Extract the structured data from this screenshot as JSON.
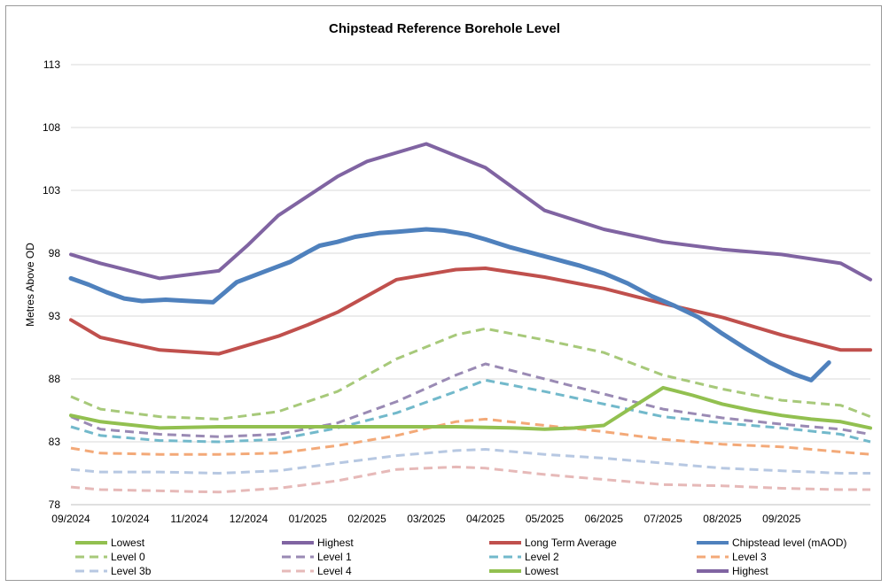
{
  "chart_data": {
    "type": "line",
    "title": "Chipstead Reference Borehole Level",
    "xlabel": "",
    "ylabel": "Metres Above OD",
    "ylim": [
      78,
      113
    ],
    "yticks": [
      "113",
      "108",
      "103",
      "98",
      "93",
      "88",
      "83",
      "78"
    ],
    "ytick_values": [
      113,
      108,
      103,
      98,
      93,
      88,
      83,
      78
    ],
    "categories": [
      "09/2024",
      "10/2024",
      "11/2024",
      "12/2024",
      "01/2025",
      "02/2025",
      "03/2025",
      "04/2025",
      "05/2025",
      "06/2025",
      "07/2025",
      "08/2025",
      "09/2025"
    ],
    "x_max": 13.5,
    "grid": "horizontal",
    "legend_placement": "bottom",
    "series": [
      {
        "name": "Lowest",
        "color": "#92c050",
        "dash": "solid",
        "width": 4,
        "x": [
          0,
          0.5,
          1.5,
          2.5,
          3.5,
          4.5,
          5.5,
          6.5,
          7.5,
          8.0,
          8.5,
          9.0,
          9.5,
          10.0,
          10.5,
          11.0,
          11.5,
          12.0,
          12.5,
          13.0,
          13.5
        ],
        "values": [
          85.1,
          84.6,
          84.1,
          84.2,
          84.2,
          84.2,
          84.2,
          84.2,
          84.1,
          84.0,
          84.1,
          84.3,
          85.8,
          87.3,
          86.7,
          86.0,
          85.5,
          85.1,
          84.8,
          84.6,
          84.1
        ]
      },
      {
        "name": "Highest",
        "color": "#8064a2",
        "dash": "solid",
        "width": 4,
        "x": [
          0,
          0.5,
          1.5,
          2.5,
          3.0,
          3.5,
          4.5,
          5.0,
          6.0,
          7.0,
          8.0,
          9.0,
          10.0,
          11.0,
          12.0,
          13.0,
          13.5
        ],
        "values": [
          97.9,
          97.2,
          96.0,
          96.6,
          98.7,
          101.0,
          104.1,
          105.3,
          106.7,
          104.8,
          101.4,
          99.9,
          98.9,
          98.3,
          97.9,
          97.2,
          95.9
        ]
      },
      {
        "name": "Long Term Average",
        "color": "#c0504d",
        "dash": "solid",
        "width": 4,
        "x": [
          0,
          0.5,
          1.5,
          2.5,
          3.5,
          4.0,
          4.5,
          5.5,
          6.5,
          7.0,
          8.0,
          9.0,
          10.0,
          11.0,
          12.0,
          13.0,
          13.5
        ],
        "values": [
          92.7,
          91.3,
          90.3,
          90.0,
          91.4,
          92.3,
          93.3,
          95.9,
          96.7,
          96.8,
          96.1,
          95.2,
          94.0,
          92.9,
          91.5,
          90.3,
          90.3
        ]
      },
      {
        "name": "Chipstead level (mAOD)",
        "color": "#4f81bd",
        "dash": "solid",
        "width": 5,
        "x": [
          0,
          0.3,
          0.6,
          0.9,
          1.2,
          1.6,
          2.0,
          2.4,
          2.8,
          3.3,
          3.7,
          4.0,
          4.2,
          4.5,
          4.8,
          5.2,
          5.5,
          6.0,
          6.3,
          6.7,
          7.0,
          7.4,
          7.8,
          8.2,
          8.6,
          9.0,
          9.4,
          9.8,
          10.2,
          10.6,
          11.0,
          11.4,
          11.8,
          12.2,
          12.5,
          12.8
        ],
        "values": [
          96.0,
          95.5,
          94.9,
          94.4,
          94.2,
          94.3,
          94.2,
          94.1,
          95.7,
          96.6,
          97.3,
          98.1,
          98.6,
          98.9,
          99.3,
          99.6,
          99.7,
          99.9,
          99.8,
          99.5,
          99.1,
          98.5,
          98.0,
          97.5,
          97.0,
          96.4,
          95.6,
          94.6,
          93.8,
          92.9,
          91.6,
          90.4,
          89.3,
          88.4,
          87.9,
          89.3
        ]
      },
      {
        "name": "Level 0",
        "color": "#a7c97a",
        "dash": "dashed",
        "width": 3,
        "x": [
          0,
          0.5,
          1.5,
          2.5,
          3.5,
          4.5,
          5.5,
          6.5,
          7.0,
          8.0,
          9.0,
          10.0,
          11.0,
          12.0,
          13.0,
          13.5
        ],
        "values": [
          86.6,
          85.6,
          85.0,
          84.8,
          85.4,
          87.0,
          89.6,
          91.5,
          92.0,
          91.1,
          90.1,
          88.3,
          87.2,
          86.3,
          85.9,
          85.0
        ]
      },
      {
        "name": "Level 1",
        "color": "#9a8ab4",
        "dash": "dashed",
        "width": 3,
        "x": [
          0,
          0.5,
          1.5,
          2.5,
          3.5,
          4.5,
          5.5,
          6.5,
          7.0,
          8.0,
          9.0,
          10.0,
          11.0,
          12.0,
          13.0,
          13.5
        ],
        "values": [
          85.0,
          84.0,
          83.6,
          83.4,
          83.6,
          84.5,
          86.2,
          88.3,
          89.2,
          88.0,
          86.8,
          85.6,
          84.9,
          84.4,
          84.0,
          83.6
        ]
      },
      {
        "name": "Level 2",
        "color": "#72b9cb",
        "dash": "dashed",
        "width": 3,
        "x": [
          0,
          0.5,
          1.5,
          2.5,
          3.5,
          4.5,
          5.5,
          6.5,
          7.0,
          8.0,
          9.0,
          10.0,
          11.0,
          12.0,
          13.0,
          13.5
        ],
        "values": [
          84.2,
          83.5,
          83.1,
          83.0,
          83.2,
          84.1,
          85.3,
          87.0,
          87.9,
          87.0,
          86.0,
          85.0,
          84.5,
          84.1,
          83.6,
          83.0
        ]
      },
      {
        "name": "Level 3",
        "color": "#f3a978",
        "dash": "dashed",
        "width": 3,
        "x": [
          0,
          0.5,
          1.5,
          2.5,
          3.5,
          4.5,
          5.5,
          6.5,
          7.0,
          8.0,
          9.0,
          10.0,
          11.0,
          12.0,
          13.0,
          13.5
        ],
        "values": [
          82.5,
          82.1,
          82.0,
          82.0,
          82.1,
          82.7,
          83.5,
          84.6,
          84.8,
          84.3,
          83.8,
          83.2,
          82.8,
          82.6,
          82.2,
          82.0
        ]
      },
      {
        "name": "Level 3b",
        "color": "#b7c8e2",
        "dash": "dashed",
        "width": 3,
        "x": [
          0,
          0.5,
          1.5,
          2.5,
          3.5,
          4.5,
          5.5,
          6.5,
          7.0,
          8.0,
          9.0,
          10.0,
          11.0,
          12.0,
          13.0,
          13.5
        ],
        "values": [
          80.8,
          80.6,
          80.6,
          80.5,
          80.7,
          81.3,
          81.9,
          82.3,
          82.4,
          82.0,
          81.7,
          81.3,
          80.9,
          80.7,
          80.5,
          80.5
        ]
      },
      {
        "name": "Level 4",
        "color": "#e6b9b8",
        "dash": "dashed",
        "width": 3,
        "x": [
          0,
          0.5,
          1.5,
          2.5,
          3.5,
          4.5,
          5.5,
          6.5,
          7.0,
          8.0,
          9.0,
          10.0,
          11.0,
          12.0,
          13.0,
          13.5
        ],
        "values": [
          79.4,
          79.2,
          79.1,
          79.0,
          79.3,
          79.9,
          80.8,
          81.0,
          80.9,
          80.4,
          80.0,
          79.6,
          79.5,
          79.3,
          79.2,
          79.2
        ]
      },
      {
        "name": "Lowest",
        "color": "#92c050",
        "dash": "solid",
        "width": 4,
        "legend_only": true
      },
      {
        "name": "Highest",
        "color": "#8064a2",
        "dash": "solid",
        "width": 4,
        "legend_only": true
      }
    ]
  }
}
